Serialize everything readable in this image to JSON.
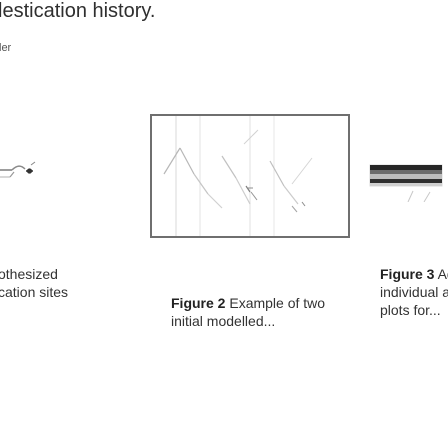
{
  "page": {
    "top_title": "lestication history.",
    "small_label": "ler"
  },
  "figures": {
    "left": {
      "caption_line1": "othesized",
      "caption_line2": "cation sites"
    },
    "center": {
      "caption_bold": "Figure 2",
      "caption_text": " Example of two",
      "caption_line2": "initial modelled..."
    },
    "right": {
      "caption_bold": "Figure 3",
      "caption_text": " Ad",
      "caption_line2": "individual as",
      "caption_line3": "plots for..."
    }
  },
  "colors": {
    "page_background": "#ffffff",
    "center_frame": "#6f6f6f",
    "text": "#333333"
  }
}
